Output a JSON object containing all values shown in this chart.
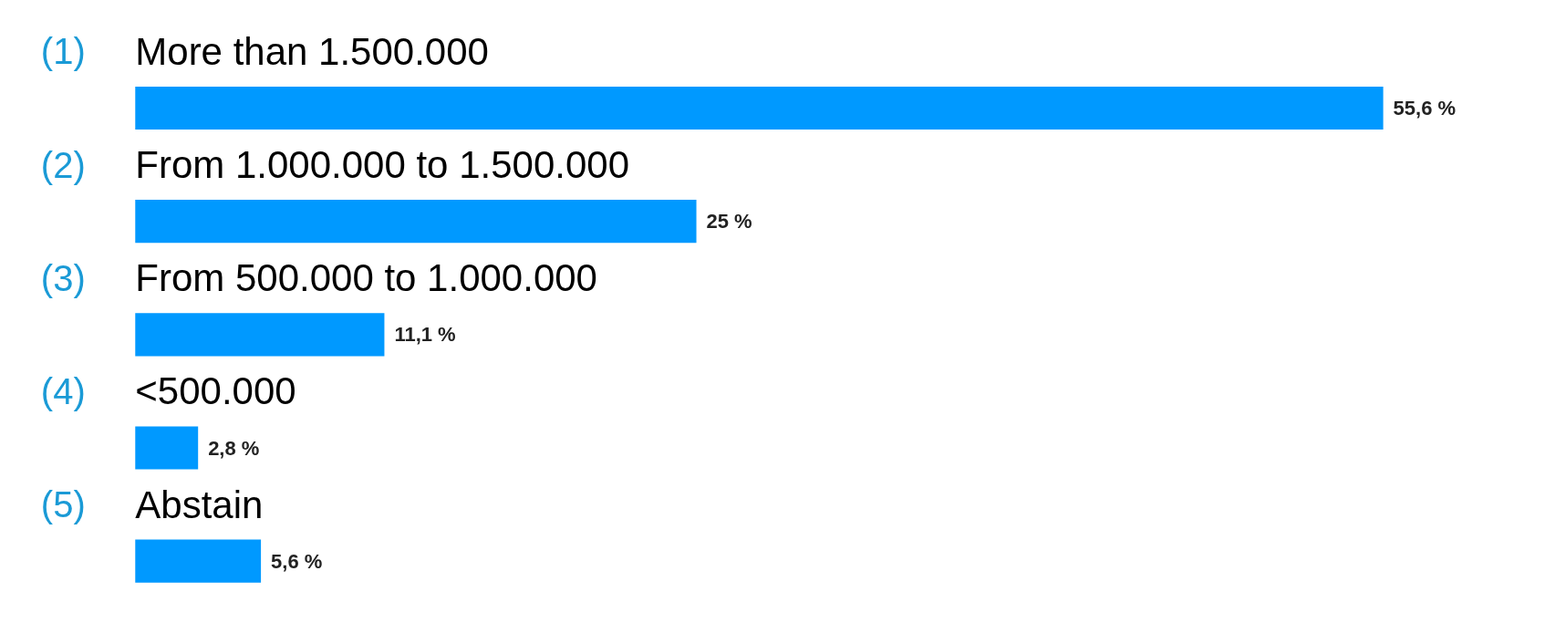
{
  "chart_data": {
    "type": "bar",
    "orientation": "horizontal",
    "categories": [
      "(1) More than 1.500.000",
      "(2) From 1.000.000 to 1.500.000",
      "(3) From 500.000 to 1.000.000",
      "(4) <500.000",
      "(5) Abstain"
    ],
    "values": [
      55.6,
      25,
      11.1,
      2.8,
      5.6
    ],
    "value_labels": [
      "55,6 %",
      "25 %",
      "11,1 %",
      "2,8 %",
      "5,6 %"
    ],
    "color": "#0099ff"
  }
}
